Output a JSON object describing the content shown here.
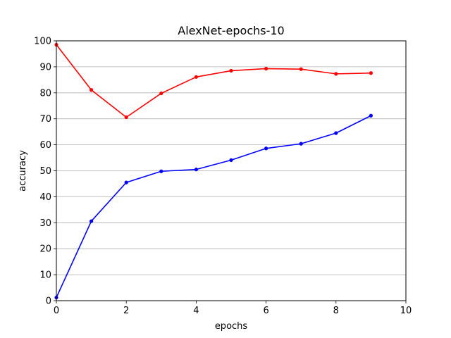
{
  "chart_data": {
    "type": "line",
    "title": "AlexNet-epochs-10",
    "xlabel": "epochs",
    "ylabel": "accuracy",
    "xlim": [
      0,
      10
    ],
    "ylim": [
      0,
      100
    ],
    "xticks": [
      0,
      2,
      4,
      6,
      8,
      10
    ],
    "yticks": [
      0,
      10,
      20,
      30,
      40,
      50,
      60,
      70,
      80,
      90,
      100
    ],
    "grid": "horizontal",
    "x": [
      0,
      1,
      2,
      3,
      4,
      5,
      6,
      7,
      8,
      9
    ],
    "series": [
      {
        "color": "#ff0000",
        "marker": "circle",
        "values": [
          98.5,
          81.1,
          70.6,
          79.8,
          86.1,
          88.5,
          89.3,
          89.1,
          87.3,
          87.6
        ]
      },
      {
        "color": "#0000ff",
        "marker": "circle",
        "values": [
          1.2,
          30.6,
          45.5,
          49.8,
          50.5,
          54.1,
          58.6,
          60.4,
          64.5,
          71.2
        ]
      }
    ]
  }
}
